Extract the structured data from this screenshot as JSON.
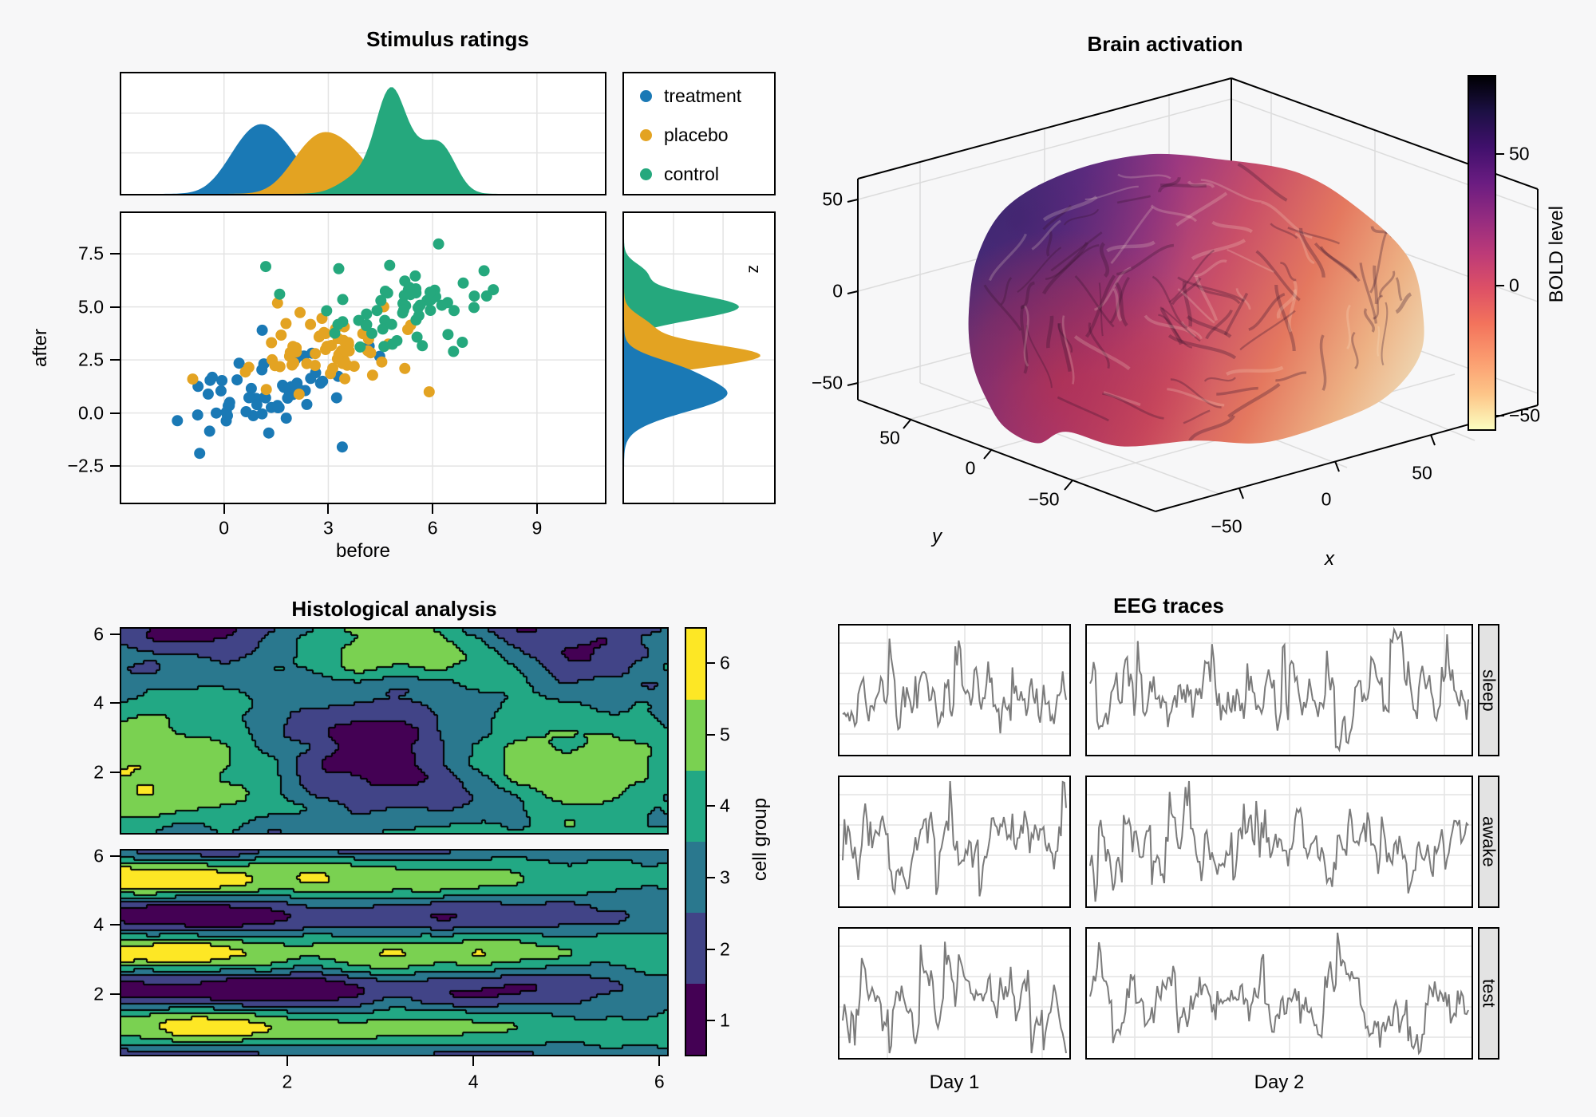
{
  "figure": {
    "background": "#f7f7f8",
    "panel_background": "#ffffff",
    "grid_color": "#e4e4e4",
    "axis_color": "#000000",
    "strip_background": "#e3e3e3"
  },
  "chart_data": [
    {
      "id": "stimulus",
      "type": "scatter",
      "title": "Stimulus ratings",
      "xlabel": "before",
      "ylabel": "after",
      "marginal_label": "z",
      "xlim": [
        -3.0,
        11.0
      ],
      "ylim": [
        -4.3,
        9.5
      ],
      "x_ticks": [
        0,
        3,
        6,
        9
      ],
      "x_tick_labels": [
        "0",
        "3",
        "6",
        "9"
      ],
      "y_ticks": [
        7.5,
        5.0,
        2.5,
        0.0,
        -2.5
      ],
      "y_tick_labels": [
        "7.5",
        "5.0",
        "2.5",
        "0.0",
        "−2.5"
      ],
      "legend_position": "top-right",
      "groups": [
        {
          "name": "treatment",
          "color": "#1A79B5",
          "n": 60,
          "seed": 7,
          "mean": [
            1.0,
            0.9
          ],
          "sd": [
            1.15,
            1.0
          ],
          "corr": 0.45,
          "extra": [
            [
              -0.7,
              -1.9
            ],
            [
              3.4,
              -1.6
            ],
            [
              1.1,
              3.9
            ]
          ],
          "x_density": {
            "components": [
              [
                1.15,
                0.7,
                0.72
              ],
              [
                0.3,
                0.55,
                0.16
              ],
              [
                2.1,
                0.45,
                0.12
              ]
            ],
            "peak": 0.62
          },
          "y_density": {
            "components": [
              [
                0.9,
                0.85,
                0.8
              ],
              [
                2.2,
                0.5,
                0.2
              ]
            ],
            "peak": 0.72
          }
        },
        {
          "name": "placebo",
          "color": "#E3A322",
          "n": 60,
          "seed": 19,
          "mean": [
            3.0,
            2.9
          ],
          "sd": [
            1.1,
            0.95
          ],
          "corr": 0.45,
          "extra": [
            [
              -0.9,
              1.6
            ],
            [
              5.9,
              1.0
            ],
            [
              5.2,
              2.1
            ]
          ],
          "x_density": {
            "components": [
              [
                2.35,
                0.6,
                0.35
              ],
              [
                3.15,
                0.6,
                0.45
              ],
              [
                3.95,
                0.5,
                0.2
              ]
            ],
            "peak": 0.55
          },
          "y_density": {
            "components": [
              [
                2.7,
                0.55,
                0.85
              ],
              [
                4.1,
                0.5,
                0.15
              ]
            ],
            "peak": 0.95
          }
        },
        {
          "name": "control",
          "color": "#25A87D",
          "n": 60,
          "seed": 23,
          "mean": [
            5.1,
            5.0
          ],
          "sd": [
            1.2,
            1.0
          ],
          "corr": 0.45,
          "extra": [
            [
              1.2,
              6.9
            ],
            [
              1.6,
              5.6
            ],
            [
              3.3,
              6.8
            ],
            [
              6.6,
              2.9
            ]
          ],
          "x_density": {
            "components": [
              [
                4.78,
                0.42,
                0.52
              ],
              [
                5.7,
                0.55,
                0.22
              ],
              [
                6.35,
                0.4,
                0.16
              ],
              [
                3.9,
                0.55,
                0.1
              ]
            ],
            "peak": 0.95
          },
          "y_density": {
            "components": [
              [
                5.0,
                0.6,
                0.85
              ],
              [
                6.6,
                0.45,
                0.15
              ]
            ],
            "peak": 0.8
          }
        }
      ]
    },
    {
      "id": "brain",
      "type": "3d-mesh",
      "title": "Brain activation",
      "axes": {
        "x": {
          "label": "x",
          "ticks": [
            -50,
            0,
            50
          ],
          "tick_labels": [
            "−50",
            "0",
            "50"
          ]
        },
        "y": {
          "label": "y",
          "ticks": [
            50,
            0,
            -50
          ],
          "tick_labels": [
            "50",
            "0",
            "−50"
          ]
        },
        "z": {
          "ticks": [
            50,
            0,
            -50
          ],
          "tick_labels": [
            "50",
            "0",
            "−50"
          ]
        }
      },
      "colorbar": {
        "label": "BOLD level",
        "ticks": [
          50,
          0,
          -50
        ],
        "tick_labels": [
          "50",
          "0",
          "−50"
        ],
        "colormap": "magma reversed",
        "stops": [
          "#000004",
          "#1c1044",
          "#40106c",
          "#6a1c81",
          "#932b80",
          "#bc3a78",
          "#dd5066",
          "#f3735c",
          "#fb9b6f",
          "#fdc588",
          "#fcfdbf"
        ]
      },
      "surface_gradient": [
        "#46307e",
        "#6a2f88",
        "#9c3880",
        "#c94f68",
        "#e4785f",
        "#edb184",
        "#efe6c5"
      ]
    },
    {
      "id": "histology",
      "type": "contourf",
      "title": "Histological analysis",
      "xlim": [
        0.2,
        6.1
      ],
      "ylim": [
        0.2,
        6.2
      ],
      "x_ticks": [
        2,
        4,
        6
      ],
      "x_tick_labels": [
        "2",
        "4",
        "6"
      ],
      "y_ticks": [
        6,
        4,
        2
      ],
      "y_tick_labels": [
        "6",
        "4",
        "2"
      ],
      "levels": [
        1,
        2,
        3,
        4,
        5,
        6
      ],
      "colorbar": {
        "label": "cell group",
        "ticks": [
          1,
          2,
          3,
          4,
          5,
          6
        ],
        "tick_labels": [
          "1",
          "2",
          "3",
          "4",
          "5",
          "6"
        ],
        "colors": [
          "#440154",
          "#414487",
          "#2a788e",
          "#22a884",
          "#7ad151",
          "#fde725"
        ]
      },
      "panels": [
        {
          "orientation": "vertical-bands",
          "seed": 11
        },
        {
          "orientation": "horizontal-bands",
          "seed": 4
        }
      ]
    },
    {
      "id": "eeg",
      "type": "line",
      "title": "EEG traces",
      "columns": [
        "Day 1",
        "Day 2"
      ],
      "rows": [
        "sleep",
        "awake",
        "test"
      ],
      "line_color": "#7b7b7b",
      "n_points": [
        130,
        215
      ],
      "spike_prob": 0.05,
      "seeds": [
        [
          11,
          12
        ],
        [
          13,
          14
        ],
        [
          15,
          16
        ]
      ]
    }
  ]
}
